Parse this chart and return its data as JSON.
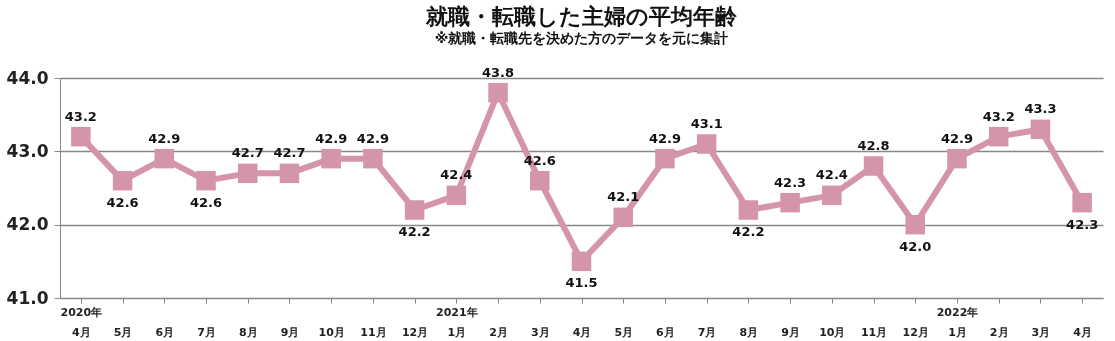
{
  "chart_data": {
    "type": "line",
    "title": "就職・転職した主婦の平均年齢",
    "subtitle": "※就職・転職先を決めた方のデータを元に集計",
    "categories": [
      "2020年\n4月",
      "5月",
      "6月",
      "7月",
      "8月",
      "9月",
      "10月",
      "11月",
      "12月",
      "2021年\n1月",
      "2月",
      "3月",
      "4月",
      "5月",
      "6月",
      "7月",
      "8月",
      "9月",
      "10月",
      "11月",
      "12月",
      "2022年\n1月",
      "2月",
      "3月",
      "4月"
    ],
    "series": [
      {
        "color": "#d494a9",
        "values": [
          43.2,
          42.6,
          42.9,
          42.6,
          42.7,
          42.7,
          42.9,
          42.9,
          42.2,
          42.4,
          43.8,
          42.6,
          41.5,
          42.1,
          42.9,
          43.1,
          42.2,
          42.3,
          42.4,
          42.8,
          42.0,
          42.9,
          43.2,
          43.3,
          42.3
        ],
        "value_labels": [
          "43.2",
          "42.6",
          "42.9",
          "42.6",
          "42.7",
          "42.7",
          "42.9",
          "42.9",
          "42.2",
          "42.4",
          "43.8",
          "42.6",
          "41.5",
          "42.1",
          "42.9",
          "43.1",
          "42.2",
          "42.3",
          "42.4",
          "42.8",
          "42.0",
          "42.9",
          "43.2",
          "43.3",
          "42.3"
        ]
      }
    ],
    "ylim": [
      41,
      44
    ],
    "yticks": [
      {
        "value": 41,
        "label": "41.0"
      },
      {
        "value": 42,
        "label": "42.0"
      },
      {
        "value": 43,
        "label": "43.0"
      },
      {
        "value": 44,
        "label": "44.0"
      }
    ],
    "grid": "y",
    "marker": "square",
    "line_style": "solid",
    "legend": false
  }
}
